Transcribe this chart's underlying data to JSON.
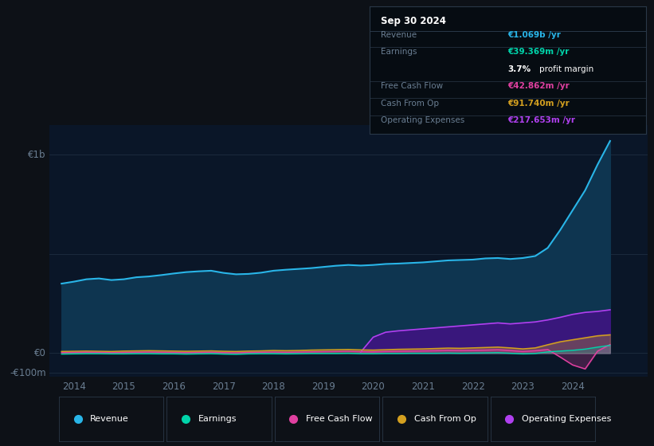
{
  "bg_color": "#0d1117",
  "plot_bg_color": "#0a1628",
  "grid_color": "#1e2d40",
  "years": [
    2013.75,
    2014.0,
    2014.25,
    2014.5,
    2014.75,
    2015.0,
    2015.25,
    2015.5,
    2015.75,
    2016.0,
    2016.25,
    2016.5,
    2016.75,
    2017.0,
    2017.25,
    2017.5,
    2017.75,
    2018.0,
    2018.25,
    2018.5,
    2018.75,
    2019.0,
    2019.25,
    2019.5,
    2019.75,
    2020.0,
    2020.25,
    2020.5,
    2020.75,
    2021.0,
    2021.25,
    2021.5,
    2021.75,
    2022.0,
    2022.25,
    2022.5,
    2022.75,
    2023.0,
    2023.25,
    2023.5,
    2023.75,
    2024.0,
    2024.25,
    2024.5,
    2024.75
  ],
  "revenue": [
    350,
    360,
    372,
    376,
    368,
    372,
    382,
    386,
    393,
    401,
    408,
    412,
    415,
    404,
    397,
    399,
    405,
    415,
    420,
    424,
    428,
    434,
    440,
    444,
    441,
    444,
    449,
    451,
    454,
    457,
    462,
    467,
    469,
    471,
    477,
    479,
    474,
    479,
    489,
    530,
    620,
    720,
    820,
    950,
    1069
  ],
  "earnings": [
    -5,
    -4,
    -3,
    -3,
    -4,
    -4,
    -3,
    -3,
    -4,
    -4,
    -5,
    -4,
    -3,
    -5,
    -6,
    -4,
    -3,
    -3,
    -4,
    -3,
    -2,
    -2,
    -2,
    -1,
    -3,
    -3,
    -2,
    -2,
    -1,
    -1,
    -1,
    0,
    -1,
    0,
    1,
    2,
    -1,
    -4,
    -2,
    6,
    10,
    14,
    20,
    30,
    39
  ],
  "free_cash_flow": [
    2,
    3,
    4,
    3,
    2,
    3,
    4,
    5,
    4,
    3,
    2,
    3,
    4,
    2,
    1,
    3,
    4,
    5,
    4,
    5,
    6,
    7,
    8,
    9,
    7,
    6,
    8,
    9,
    10,
    11,
    12,
    14,
    13,
    14,
    15,
    17,
    13,
    8,
    12,
    18,
    -20,
    -60,
    -80,
    10,
    43
  ],
  "cash_from_op": [
    8,
    9,
    10,
    9,
    8,
    10,
    11,
    12,
    11,
    10,
    9,
    10,
    11,
    9,
    8,
    10,
    11,
    13,
    12,
    13,
    15,
    16,
    17,
    18,
    16,
    15,
    17,
    19,
    20,
    21,
    23,
    25,
    24,
    26,
    28,
    30,
    26,
    21,
    26,
    42,
    57,
    67,
    77,
    87,
    92
  ],
  "operating_expenses": [
    0,
    0,
    0,
    0,
    0,
    0,
    0,
    0,
    0,
    0,
    0,
    0,
    0,
    0,
    0,
    0,
    0,
    0,
    0,
    0,
    0,
    0,
    0,
    0,
    5,
    80,
    105,
    112,
    117,
    122,
    127,
    132,
    137,
    142,
    147,
    152,
    147,
    152,
    157,
    167,
    180,
    195,
    205,
    210,
    218
  ],
  "revenue_color": "#29b5e8",
  "earnings_color": "#00d4aa",
  "fcf_color": "#e040a0",
  "cashop_color": "#d4a020",
  "opex_color": "#b040f0",
  "revenue_fill": "#0e3550",
  "opex_fill": "#3d1580",
  "xlim_start": 2013.5,
  "xlim_end": 2025.5,
  "ylim_min": -120,
  "ylim_max": 1150,
  "ylabel_1b": "€1b",
  "ylabel_0": "€0",
  "ylabel_n100m": "-€100m",
  "grid_vals": [
    1000,
    500,
    0,
    -100
  ],
  "xtick_years": [
    2014,
    2015,
    2016,
    2017,
    2018,
    2019,
    2020,
    2021,
    2022,
    2023,
    2024
  ],
  "legend_items": [
    {
      "label": "Revenue",
      "color": "#29b5e8"
    },
    {
      "label": "Earnings",
      "color": "#00d4aa"
    },
    {
      "label": "Free Cash Flow",
      "color": "#e040a0"
    },
    {
      "label": "Cash From Op",
      "color": "#d4a020"
    },
    {
      "label": "Operating Expenses",
      "color": "#b040f0"
    }
  ],
  "infobox_bg": "#060c12",
  "infobox_border": "#2a3848",
  "infobox_title": "Sep 30 2024",
  "infobox_rows": [
    {
      "label": "Revenue",
      "value": "€1.069b /yr",
      "value_color": "#29b5e8",
      "extra": null
    },
    {
      "label": "Earnings",
      "value": "€39.369m /yr",
      "value_color": "#00d4aa",
      "extra": "3.7% profit margin"
    },
    {
      "label": "Free Cash Flow",
      "value": "€42.862m /yr",
      "value_color": "#e040a0",
      "extra": null
    },
    {
      "label": "Cash From Op",
      "value": "€91.740m /yr",
      "value_color": "#d4a020",
      "extra": null
    },
    {
      "label": "Operating Expenses",
      "value": "€217.653m /yr",
      "value_color": "#b040f0",
      "extra": null
    }
  ],
  "label_color": "#6a7e92",
  "tick_color": "#6a7e92"
}
